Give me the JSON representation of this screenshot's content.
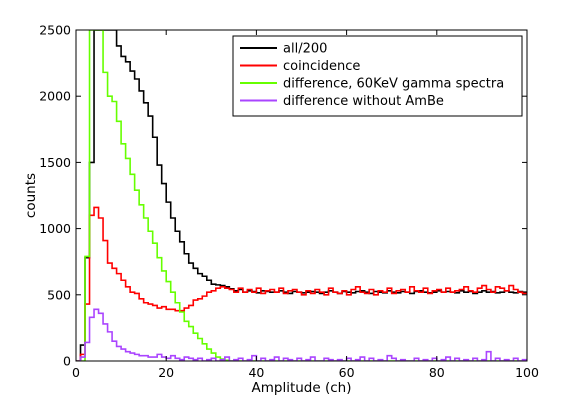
{
  "chart_data": {
    "type": "line",
    "step": true,
    "title": "",
    "xlabel": "Amplitude (ch)",
    "ylabel": "counts",
    "xlim": [
      0,
      100
    ],
    "ylim": [
      0,
      2500
    ],
    "xticks": [
      0,
      20,
      40,
      60,
      80,
      100
    ],
    "yticks": [
      0,
      500,
      1000,
      1500,
      2000,
      2500
    ],
    "grid": false,
    "legend_position": "top-right",
    "series": [
      {
        "name": "all/200",
        "color": "#000000",
        "x": [
          1,
          2,
          3,
          4,
          5,
          6,
          7,
          8,
          9,
          10,
          11,
          12,
          13,
          14,
          15,
          16,
          17,
          18,
          19,
          20,
          21,
          22,
          23,
          24,
          25,
          26,
          27,
          28,
          29,
          30,
          31,
          32,
          33,
          34,
          35,
          36,
          37,
          38,
          39,
          40,
          41,
          42,
          43,
          44,
          45,
          46,
          47,
          48,
          49,
          50,
          51,
          52,
          53,
          54,
          55,
          56,
          57,
          58,
          59,
          60,
          61,
          62,
          63,
          64,
          65,
          66,
          67,
          68,
          69,
          70,
          71,
          72,
          73,
          74,
          75,
          76,
          77,
          78,
          79,
          80,
          81,
          82,
          83,
          84,
          85,
          86,
          87,
          88,
          89,
          90,
          91,
          92,
          93,
          94,
          95,
          96,
          97,
          98,
          99,
          100
        ],
        "values": [
          0,
          120,
          780,
          1500,
          2500,
          2500,
          2500,
          2500,
          2500,
          2380,
          2300,
          2260,
          2190,
          2130,
          2040,
          1950,
          1850,
          1690,
          1480,
          1340,
          1200,
          1080,
          980,
          900,
          810,
          740,
          700,
          660,
          640,
          610,
          580,
          575,
          570,
          560,
          545,
          530,
          540,
          520,
          530,
          525,
          515,
          530,
          525,
          520,
          520,
          530,
          520,
          510,
          525,
          520,
          515,
          520,
          525,
          520,
          510,
          520,
          530,
          520,
          510,
          525,
          520,
          515,
          525,
          530,
          520,
          510,
          525,
          520,
          515,
          530,
          520,
          515,
          525,
          520,
          510,
          525,
          530,
          520,
          515,
          520,
          530,
          520,
          525,
          520,
          515,
          530,
          520,
          525,
          510,
          520,
          530,
          520,
          525,
          515,
          520,
          530,
          520,
          515,
          525,
          520
        ]
      },
      {
        "name": "coincidence",
        "color": "#ff0000",
        "x": [
          1,
          2,
          3,
          4,
          5,
          6,
          7,
          8,
          9,
          10,
          11,
          12,
          13,
          14,
          15,
          16,
          17,
          18,
          19,
          20,
          21,
          22,
          23,
          24,
          25,
          26,
          27,
          28,
          29,
          30,
          31,
          32,
          33,
          34,
          35,
          36,
          37,
          38,
          39,
          40,
          41,
          42,
          43,
          44,
          45,
          46,
          47,
          48,
          49,
          50,
          51,
          52,
          53,
          54,
          55,
          56,
          57,
          58,
          59,
          60,
          61,
          62,
          63,
          64,
          65,
          66,
          67,
          68,
          69,
          70,
          71,
          72,
          73,
          74,
          75,
          76,
          77,
          78,
          79,
          80,
          81,
          82,
          83,
          84,
          85,
          86,
          87,
          88,
          89,
          90,
          91,
          92,
          93,
          94,
          95,
          96,
          97,
          98,
          99,
          100
        ],
        "values": [
          0,
          50,
          430,
          1100,
          1160,
          1080,
          910,
          740,
          700,
          660,
          610,
          560,
          520,
          510,
          470,
          440,
          430,
          420,
          400,
          410,
          390,
          390,
          380,
          380,
          400,
          420,
          460,
          470,
          490,
          520,
          530,
          550,
          560,
          550,
          540,
          520,
          550,
          520,
          540,
          520,
          550,
          510,
          530,
          540,
          520,
          550,
          510,
          530,
          540,
          520,
          500,
          530,
          510,
          540,
          520,
          500,
          550,
          520,
          510,
          530,
          500,
          540,
          560,
          520,
          510,
          540,
          500,
          530,
          520,
          550,
          510,
          530,
          540,
          520,
          560,
          530,
          520,
          550,
          510,
          530,
          540,
          520,
          550,
          520,
          530,
          540,
          560,
          530,
          520,
          550,
          570,
          540,
          520,
          560,
          550,
          530,
          570,
          540,
          520,
          510
        ]
      },
      {
        "name": "difference, 60KeV gamma spectra",
        "color": "#66ff00",
        "x": [
          1,
          2,
          3,
          4,
          5,
          6,
          7,
          8,
          9,
          10,
          11,
          12,
          13,
          14,
          15,
          16,
          17,
          18,
          19,
          20,
          21,
          22,
          23,
          24,
          25,
          26,
          27,
          28,
          29,
          30,
          31,
          32,
          33,
          34,
          35,
          36,
          37,
          38,
          39,
          40,
          41,
          42,
          43,
          44,
          45,
          46,
          47,
          48,
          49,
          50,
          51,
          52,
          53,
          54,
          55,
          56,
          57,
          58,
          59,
          60,
          61,
          62,
          63,
          64,
          65,
          66,
          67,
          68,
          69,
          70,
          71,
          72,
          73,
          74,
          75,
          76,
          77,
          78,
          79,
          80,
          81,
          82,
          83,
          84,
          85,
          86,
          87,
          88,
          89,
          90,
          91,
          92,
          93,
          94,
          95,
          96,
          97,
          98,
          99,
          100
        ],
        "values": [
          0,
          0,
          790,
          2500,
          2500,
          2500,
          2180,
          2000,
          1960,
          1810,
          1640,
          1530,
          1410,
          1290,
          1180,
          1080,
          980,
          890,
          780,
          680,
          600,
          520,
          440,
          370,
          300,
          260,
          210,
          170,
          130,
          90,
          60,
          30,
          15,
          5,
          0,
          0,
          0,
          0,
          0,
          0,
          0,
          0,
          0,
          0,
          0,
          0,
          0,
          0,
          0,
          0,
          0,
          0,
          0,
          0,
          0,
          0,
          0,
          0,
          0,
          0,
          0,
          0,
          0,
          0,
          0,
          0,
          0,
          0,
          0,
          0,
          0,
          0,
          0,
          0,
          0,
          0,
          0,
          0,
          0,
          0,
          0,
          0,
          0,
          0,
          0,
          0,
          0,
          0,
          0,
          0,
          0,
          0,
          0,
          0,
          0,
          0,
          0,
          0,
          0,
          0
        ]
      },
      {
        "name": "difference without AmBe",
        "color": "#aa44ff",
        "x": [
          1,
          2,
          3,
          4,
          5,
          6,
          7,
          8,
          9,
          10,
          11,
          12,
          13,
          14,
          15,
          16,
          17,
          18,
          19,
          20,
          21,
          22,
          23,
          24,
          25,
          26,
          27,
          28,
          29,
          30,
          31,
          32,
          33,
          34,
          35,
          36,
          37,
          38,
          39,
          40,
          41,
          42,
          43,
          44,
          45,
          46,
          47,
          48,
          49,
          50,
          51,
          52,
          53,
          54,
          55,
          56,
          57,
          58,
          59,
          60,
          61,
          62,
          63,
          64,
          65,
          66,
          67,
          68,
          69,
          70,
          71,
          72,
          73,
          74,
          75,
          76,
          77,
          78,
          79,
          80,
          81,
          82,
          83,
          84,
          85,
          86,
          87,
          88,
          89,
          90,
          91,
          92,
          93,
          94,
          95,
          96,
          97,
          98,
          99,
          100
        ],
        "values": [
          0,
          30,
          140,
          330,
          390,
          360,
          280,
          220,
          150,
          110,
          90,
          70,
          60,
          50,
          40,
          40,
          30,
          30,
          50,
          30,
          20,
          40,
          20,
          10,
          30,
          20,
          10,
          20,
          0,
          10,
          20,
          0,
          10,
          30,
          0,
          10,
          20,
          0,
          10,
          40,
          0,
          20,
          0,
          10,
          30,
          0,
          20,
          10,
          0,
          20,
          0,
          10,
          30,
          0,
          0,
          20,
          10,
          0,
          10,
          0,
          20,
          0,
          10,
          30,
          0,
          20,
          0,
          10,
          0,
          40,
          20,
          0,
          10,
          0,
          0,
          20,
          0,
          10,
          0,
          20,
          0,
          10,
          30,
          0,
          20,
          0,
          10,
          0,
          20,
          0,
          10,
          70,
          0,
          20,
          0,
          10,
          0,
          20,
          0,
          10
        ]
      }
    ]
  }
}
